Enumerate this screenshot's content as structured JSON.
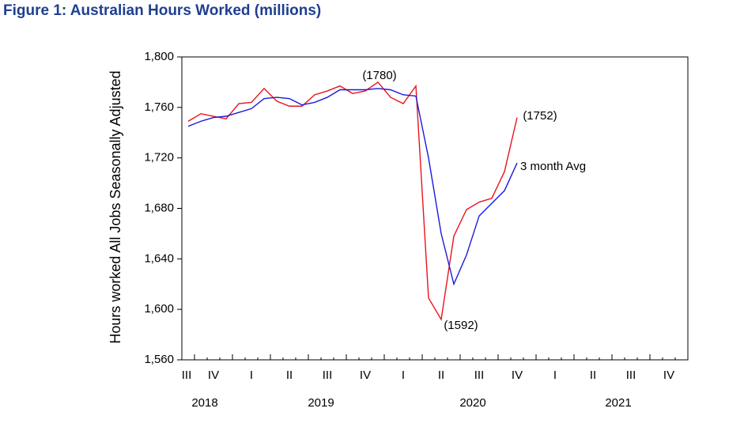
{
  "chart_data": {
    "type": "line",
    "title": "Figure 1: Australian Hours Worked (millions)",
    "y_label": "Hours worked All Jobs Seasonally Adjusted",
    "categories": [
      "III",
      null,
      "IV",
      null,
      null,
      "I",
      null,
      null,
      "II",
      null,
      null,
      "III",
      null,
      null,
      "IV",
      null,
      null,
      "I",
      null,
      null,
      "II",
      null,
      null,
      "III",
      null,
      null,
      "IV",
      null,
      null,
      "I",
      null,
      null,
      "II",
      null,
      null,
      "III",
      null,
      null,
      "IV",
      null
    ],
    "year_labels": [
      "2018",
      "2019",
      "2020",
      "2021"
    ],
    "series": [
      {
        "name": "Hours worked",
        "color": "#e8141b",
        "values": [
          1749,
          1755,
          1753,
          1751,
          1763,
          1764,
          1775,
          1765,
          1761,
          1761,
          1770,
          1773,
          1777,
          1771,
          1773,
          1780,
          1768,
          1763,
          1777,
          1609,
          1592,
          1658,
          1679,
          1685,
          1688,
          1709,
          1752,
          null,
          null,
          null,
          null,
          null,
          null,
          null,
          null,
          null,
          null,
          null,
          null,
          null
        ]
      },
      {
        "name": "3 month Avg",
        "color": "#1a1adb",
        "values": [
          1745,
          1749,
          1752,
          1753,
          1756,
          1759,
          1767,
          1768,
          1767,
          1762,
          1764,
          1768,
          1774,
          1774,
          1774,
          1775,
          1774,
          1770,
          1769,
          1720,
          1660,
          1620,
          1643,
          1674,
          1684,
          1694,
          1716,
          null,
          null,
          null,
          null,
          null,
          null,
          null,
          null,
          null,
          null,
          null,
          null,
          null
        ]
      }
    ],
    "annotations": [
      "(1780)",
      "(1752)",
      "(1592)"
    ],
    "ylim": [
      1560,
      1800
    ],
    "yticks": [
      {
        "value": 1560,
        "label": "1,560"
      },
      {
        "value": 1600,
        "label": "1,600"
      },
      {
        "value": 1640,
        "label": "1,640"
      },
      {
        "value": 1680,
        "label": "1,680"
      },
      {
        "value": 1720,
        "label": "1,720"
      },
      {
        "value": 1760,
        "label": "1,760"
      },
      {
        "value": 1800,
        "label": "1,800"
      }
    ],
    "grid": false
  }
}
